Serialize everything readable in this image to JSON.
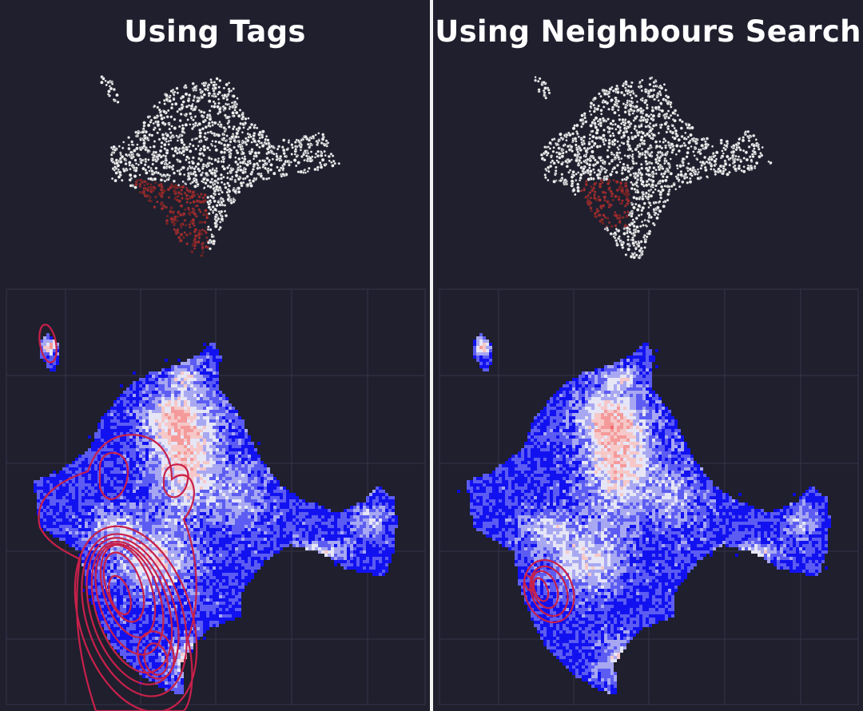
{
  "panels": [
    {
      "id": "left",
      "title": "Using Tags",
      "highlight": "tag-selected region",
      "scatter": {
        "point_color": "#ffffff",
        "highlight_color": "#a22828"
      },
      "heatmap": {
        "low_color": "#1010ff",
        "mid_color": "#e8e8f8",
        "high_color": "#f24a4a"
      },
      "contour_color": "#c8204a"
    },
    {
      "id": "right",
      "title": "Using Neighbours Search",
      "highlight": "neighbour-search region",
      "scatter": {
        "point_color": "#ffffff",
        "highlight_color": "#a22828"
      },
      "heatmap": {
        "low_color": "#1010ff",
        "mid_color": "#e8e8f8",
        "high_color": "#f24a4a"
      },
      "contour_color": "#c8204a"
    }
  ],
  "colors": {
    "background": "#1f1f2e",
    "divider": "#f2f2f2",
    "grid": "#34344a"
  },
  "chart_data": [
    {
      "type": "scatter",
      "panel": "Using Tags",
      "title": "",
      "xlabel": "",
      "ylabel": "",
      "series": [
        {
          "points": "2D embedding cloud, highlighted subset lower-left"
        }
      ]
    },
    {
      "type": "heatmap",
      "panel": "Using Tags",
      "title": "",
      "xlabel": "",
      "ylabel": "",
      "overlay": "density contours",
      "grid": true
    },
    {
      "type": "scatter",
      "panel": "Using Neighbours Search",
      "title": "",
      "xlabel": "",
      "ylabel": "",
      "series": [
        {
          "points": "2D embedding cloud, highlighted subset lower-left"
        }
      ]
    },
    {
      "type": "heatmap",
      "panel": "Using Neighbours Search",
      "title": "",
      "xlabel": "",
      "ylabel": "",
      "overlay": "density contours",
      "grid": true
    }
  ]
}
